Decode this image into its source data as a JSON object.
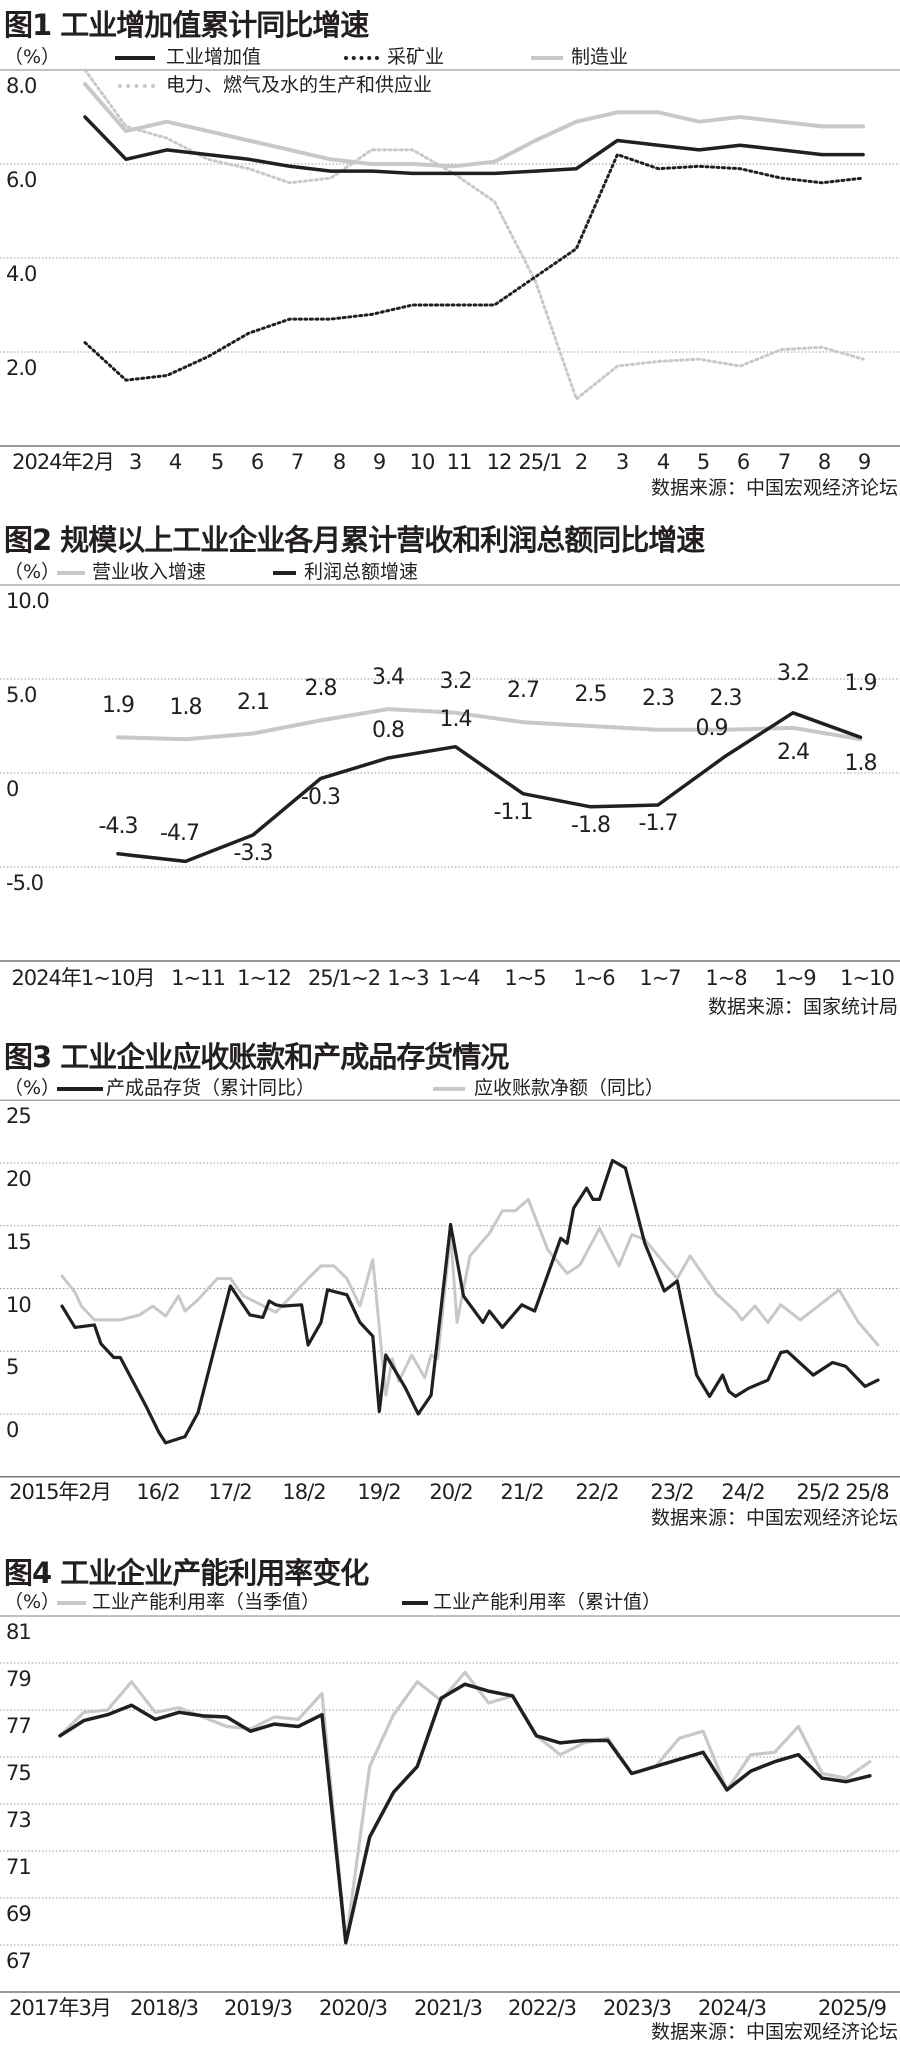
{
  "chart_data": [
    {
      "type": "line",
      "title": "图1 工业增加值累计同比增速",
      "unit": "（%）",
      "ylim": [
        0,
        8
      ],
      "yticks": [
        "8.0",
        "6.0",
        "4.0",
        "2.0"
      ],
      "ytick_values": [
        8,
        6,
        4,
        2
      ],
      "grid": true,
      "legend_placement": "top",
      "x_tick_labels": [
        "2024年2月",
        "3",
        "4",
        "5",
        "6",
        "7",
        "8",
        "9",
        "10",
        "11",
        "12",
        "25/1",
        "2",
        "3",
        "4",
        "5",
        "6",
        "7",
        "8",
        "9"
      ],
      "series": [
        {
          "name": "工业增加值",
          "style": "solid",
          "color": "#231f20",
          "values": [
            7.0,
            6.1,
            6.3,
            6.2,
            6.1,
            5.95,
            5.85,
            5.85,
            5.8,
            5.8,
            5.8,
            5.85,
            5.9,
            6.5,
            6.4,
            6.3,
            6.4,
            6.3,
            6.2,
            6.2
          ]
        },
        {
          "name": "采矿业",
          "style": "dotted",
          "color": "#231f20",
          "values": [
            2.2,
            1.4,
            1.5,
            1.9,
            2.4,
            2.7,
            2.7,
            2.8,
            3.0,
            3.0,
            3.0,
            3.6,
            4.2,
            6.2,
            5.9,
            5.95,
            5.9,
            5.7,
            5.6,
            5.7
          ]
        },
        {
          "name": "制造业",
          "style": "solid",
          "color": "#c8c8c8",
          "values": [
            7.7,
            6.7,
            6.9,
            6.7,
            6.5,
            6.3,
            6.1,
            6.0,
            6.0,
            5.95,
            6.05,
            6.5,
            6.9,
            7.1,
            7.1,
            6.9,
            7.0,
            6.9,
            6.8,
            6.8
          ]
        },
        {
          "name": "电力、燃气及水的生产和供应业",
          "style": "dotted",
          "color": "#c8c8c8",
          "values": [
            8.0,
            6.8,
            6.55,
            6.1,
            5.9,
            5.6,
            5.7,
            6.3,
            6.3,
            5.8,
            5.2,
            3.5,
            1.0,
            1.7,
            1.8,
            1.85,
            1.7,
            2.05,
            2.1,
            1.85
          ]
        }
      ],
      "source": "数据来源：中国宏观经济论坛"
    },
    {
      "type": "line",
      "title": "图2 规模以上工业企业各月累计营收和利润总额同比增速",
      "unit": "（%）",
      "ylim": [
        -10,
        10
      ],
      "yticks": [
        "10.0",
        "5.0",
        "0",
        "-5.0"
      ],
      "ytick_values": [
        10,
        5,
        0,
        -5
      ],
      "grid": true,
      "legend_placement": "top",
      "categories": [
        "2024年1~10月",
        "1~11",
        "1~12",
        "25/1~2",
        "1~3",
        "1~4",
        "1~5",
        "1~6",
        "1~7",
        "1~8",
        "1~9",
        "1~10"
      ],
      "series": [
        {
          "name": "营业收入增速",
          "color": "#c8c8c8",
          "values": [
            1.9,
            1.8,
            2.1,
            2.8,
            3.4,
            3.2,
            2.7,
            2.5,
            2.3,
            2.3,
            2.4,
            1.8
          ]
        },
        {
          "name": "利润总额增速",
          "color": "#231f20",
          "values": [
            -4.3,
            -4.7,
            -3.3,
            -0.3,
            0.8,
            1.4,
            -1.1,
            -1.8,
            -1.7,
            0.9,
            3.2,
            1.9
          ]
        }
      ],
      "source": "数据来源：国家统计局"
    },
    {
      "type": "line",
      "title": "图3 工业企业应收账款和产成品存货情况",
      "unit": "（%）",
      "ylim": [
        -5,
        25
      ],
      "yticks": [
        "25",
        "20",
        "15",
        "10",
        "5",
        "0"
      ],
      "ytick_values": [
        25,
        20,
        15,
        10,
        5,
        0
      ],
      "grid": true,
      "legend_placement": "top",
      "x_tick_labels": [
        "2015年2月",
        "16/2",
        "17/2",
        "18/2",
        "19/2",
        "20/2",
        "21/2",
        "22/2",
        "23/2",
        "24/2",
        "25/2",
        "25/8"
      ],
      "series": [
        {
          "name": "产成品存货（累计同比）",
          "color": "#231f20",
          "points": [
            [
              "2015-02",
              8.6
            ],
            [
              "2015-04",
              6.9
            ],
            [
              "2015-07",
              7.1
            ],
            [
              "2015-08",
              5.6
            ],
            [
              "2015-10",
              4.5
            ],
            [
              "2015-11",
              4.5
            ],
            [
              "2016-03",
              0.6
            ],
            [
              "2016-05",
              -1.5
            ],
            [
              "2016-06",
              -2.3
            ],
            [
              "2016-09",
              -1.8
            ],
            [
              "2016-11",
              0.1
            ],
            [
              "2017-04",
              10.2
            ],
            [
              "2017-07",
              7.9
            ],
            [
              "2017-09",
              7.7
            ],
            [
              "2017-10",
              9.0
            ],
            [
              "2017-11",
              8.7
            ],
            [
              "2017-12",
              8.6
            ],
            [
              "2018-03",
              8.7
            ],
            [
              "2018-04",
              5.5
            ],
            [
              "2018-06",
              7.3
            ],
            [
              "2018-07",
              9.9
            ],
            [
              "2018-10",
              9.5
            ],
            [
              "2018-12",
              7.3
            ],
            [
              "2019-02",
              6.2
            ],
            [
              "2019-03",
              0.2
            ],
            [
              "2019-04",
              4.7
            ],
            [
              "2019-07",
              2.1
            ],
            [
              "2019-09",
              0.0
            ],
            [
              "2019-11",
              1.5
            ],
            [
              "2020-02",
              15.1
            ],
            [
              "2020-04",
              9.4
            ],
            [
              "2020-07",
              7.3
            ],
            [
              "2020-08",
              8.2
            ],
            [
              "2020-10",
              6.9
            ],
            [
              "2021-01",
              8.7
            ],
            [
              "2021-03",
              8.2
            ],
            [
              "2021-07",
              14.0
            ],
            [
              "2021-08",
              13.6
            ],
            [
              "2021-09",
              16.4
            ],
            [
              "2021-11",
              18.0
            ],
            [
              "2021-12",
              17.1
            ],
            [
              "2022-01",
              17.1
            ],
            [
              "2022-03",
              20.2
            ],
            [
              "2022-05",
              19.6
            ],
            [
              "2022-08",
              13.6
            ],
            [
              "2022-11",
              9.8
            ],
            [
              "2023-01",
              10.6
            ],
            [
              "2023-04",
              3.1
            ],
            [
              "2023-06",
              1.4
            ],
            [
              "2023-08",
              3.1
            ],
            [
              "2023-09",
              1.8
            ],
            [
              "2023-10",
              1.4
            ],
            [
              "2023-12",
              2.05
            ],
            [
              "2024-03",
              2.7
            ],
            [
              "2024-05",
              4.9
            ],
            [
              "2024-06",
              5.0
            ],
            [
              "2024-10",
              3.1
            ],
            [
              "2025-01",
              4.1
            ],
            [
              "2025-03",
              3.8
            ],
            [
              "2025-06",
              2.2
            ],
            [
              "2025-08",
              2.7
            ]
          ]
        },
        {
          "name": "应收账款净额（同比）",
          "color": "#c8c8c8",
          "points": [
            [
              "2015-02",
              11.0
            ],
            [
              "2015-04",
              9.7
            ],
            [
              "2015-05",
              8.6
            ],
            [
              "2015-07",
              7.5
            ],
            [
              "2015-11",
              7.5
            ],
            [
              "2016-02",
              7.9
            ],
            [
              "2016-04",
              8.6
            ],
            [
              "2016-06",
              7.8
            ],
            [
              "2016-08",
              9.4
            ],
            [
              "2016-09",
              8.2
            ],
            [
              "2016-11",
              9.1
            ],
            [
              "2017-02",
              10.8
            ],
            [
              "2017-04",
              10.8
            ],
            [
              "2017-06",
              9.4
            ],
            [
              "2017-08",
              8.9
            ],
            [
              "2017-11",
              8.1
            ],
            [
              "2018-02",
              9.7
            ],
            [
              "2018-04",
              10.8
            ],
            [
              "2018-06",
              11.8
            ],
            [
              "2018-08",
              11.8
            ],
            [
              "2018-10",
              10.8
            ],
            [
              "2018-12",
              8.6
            ],
            [
              "2019-02",
              12.3
            ],
            [
              "2019-04",
              1.5
            ],
            [
              "2019-05",
              4.4
            ],
            [
              "2019-06",
              2.6
            ],
            [
              "2019-08",
              4.7
            ],
            [
              "2019-10",
              2.9
            ],
            [
              "2019-11",
              4.7
            ],
            [
              "2019-12",
              4.4
            ],
            [
              "2020-02",
              14.4
            ],
            [
              "2020-03",
              7.3
            ],
            [
              "2020-05",
              12.6
            ],
            [
              "2020-08",
              14.4
            ],
            [
              "2020-10",
              16.2
            ],
            [
              "2020-12",
              16.2
            ],
            [
              "2021-02",
              17.1
            ],
            [
              "2021-05",
              13.1
            ],
            [
              "2021-08",
              11.2
            ],
            [
              "2021-10",
              11.9
            ],
            [
              "2022-01",
              14.8
            ],
            [
              "2022-04",
              11.8
            ],
            [
              "2022-06",
              14.3
            ],
            [
              "2022-08",
              13.9
            ],
            [
              "2022-11",
              12.0
            ],
            [
              "2023-01",
              10.8
            ],
            [
              "2023-03",
              12.6
            ],
            [
              "2023-07",
              9.6
            ],
            [
              "2023-10",
              8.2
            ],
            [
              "2023-11",
              7.5
            ],
            [
              "2024-01",
              8.6
            ],
            [
              "2024-03",
              7.3
            ],
            [
              "2024-05",
              8.7
            ],
            [
              "2024-08",
              7.5
            ],
            [
              "2024-12",
              9.1
            ],
            [
              "2025-02",
              9.9
            ],
            [
              "2025-05",
              7.3
            ],
            [
              "2025-08",
              5.5
            ]
          ]
        }
      ],
      "source": "数据来源：中国宏观经济论坛"
    },
    {
      "type": "line",
      "title": "图4 工业企业产能利用率变化",
      "unit": "（%）",
      "ylim": [
        65,
        81
      ],
      "yticks": [
        "81",
        "79",
        "77",
        "75",
        "73",
        "71",
        "69",
        "67"
      ],
      "ytick_values": [
        81,
        79,
        77,
        75,
        73,
        71,
        69,
        67
      ],
      "grid": true,
      "legend_placement": "top",
      "x_tick_labels": [
        "2017年3月",
        "2018/3",
        "2019/3",
        "2020/3",
        "2021/3",
        "2022/3",
        "2023/3",
        "2024/3",
        "2025/9"
      ],
      "categories": [
        "2017/3",
        "2017/6",
        "2017/9",
        "2017/12",
        "2018/3",
        "2018/6",
        "2018/9",
        "2018/12",
        "2019/3",
        "2019/6",
        "2019/9",
        "2019/12",
        "2020/3",
        "2020/6",
        "2020/9",
        "2020/12",
        "2021/3",
        "2021/6",
        "2021/9",
        "2021/12",
        "2022/3",
        "2022/6",
        "2022/9",
        "2022/12",
        "2023/3",
        "2023/6",
        "2023/9",
        "2023/12",
        "2024/3",
        "2024/6",
        "2024/9",
        "2024/12",
        "2025/3",
        "2025/6",
        "2025/9"
      ],
      "series": [
        {
          "name": "工业产能利用率（当季值）",
          "color": "#c8c8c8",
          "values": [
            75.9,
            76.9,
            77.0,
            78.2,
            76.9,
            77.1,
            76.7,
            76.3,
            76.2,
            76.7,
            76.6,
            77.7,
            67.1,
            74.6,
            76.8,
            78.2,
            77.4,
            78.6,
            77.3,
            77.6,
            75.9,
            75.1,
            75.6,
            75.8,
            74.3,
            74.6,
            75.8,
            76.1,
            73.6,
            75.1,
            75.2,
            76.3,
            74.3,
            74.1,
            74.8
          ]
        },
        {
          "name": "工业产能利用率（累计值）",
          "color": "#231f20",
          "values": [
            75.9,
            76.55,
            76.8,
            77.2,
            76.6,
            76.9,
            76.75,
            76.7,
            76.1,
            76.4,
            76.3,
            76.8,
            67.1,
            71.6,
            73.5,
            74.6,
            77.5,
            78.1,
            77.8,
            77.6,
            75.9,
            75.6,
            75.7,
            75.7,
            74.3,
            74.6,
            74.9,
            75.2,
            73.6,
            74.4,
            74.8,
            75.1,
            74.1,
            73.95,
            74.2
          ]
        }
      ],
      "source": "数据来源：中国宏观经济论坛"
    }
  ]
}
